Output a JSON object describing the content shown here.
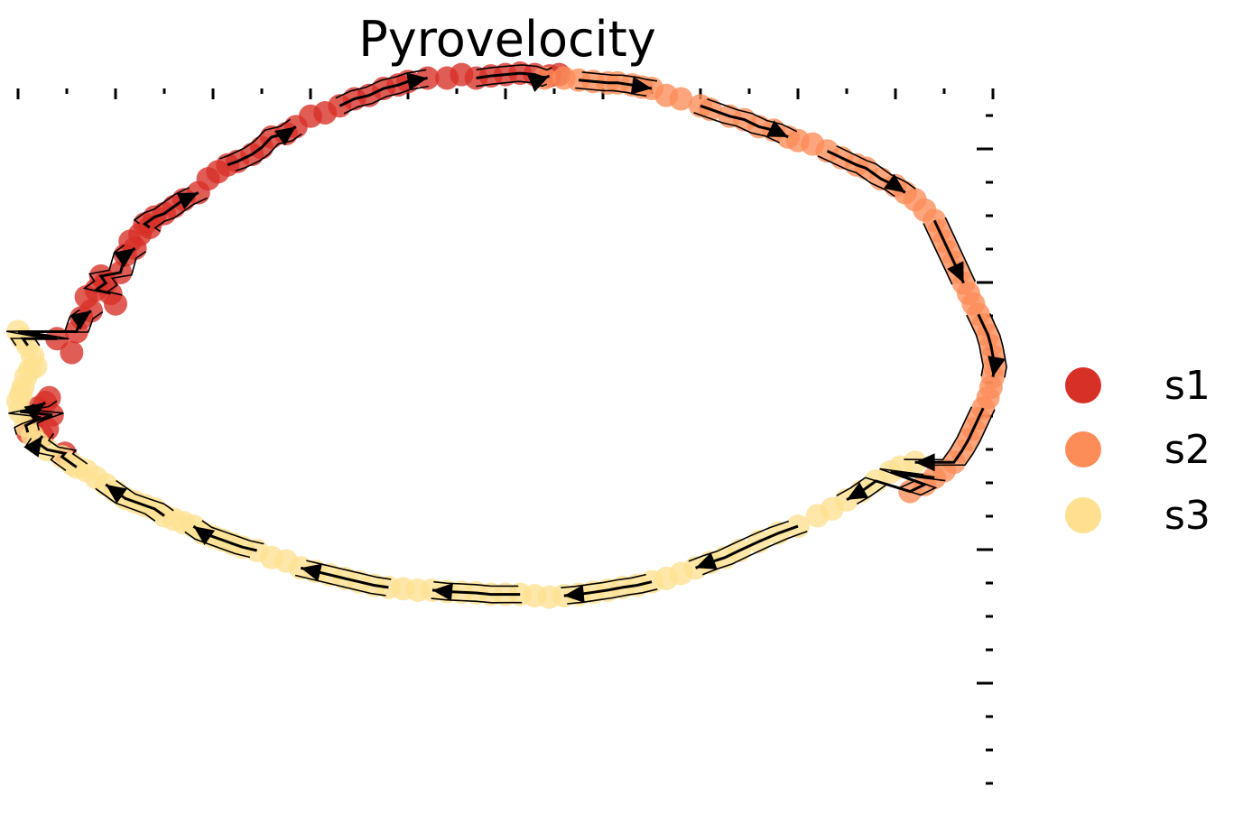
{
  "chart_data": {
    "type": "scatter",
    "title": "Pyrovelocity",
    "xlabel": "",
    "ylabel": "",
    "xlim": [
      0,
      1000
    ],
    "ylim": [
      0,
      1000
    ],
    "x_ticks_top": true,
    "y_ticks_right": true,
    "tick_labels": false,
    "grid": false,
    "legend_position": "right",
    "stream_arrows": true,
    "legend": [
      {
        "name": "s1",
        "color": "#d73027"
      },
      {
        "name": "s2",
        "color": "#fc8d59"
      },
      {
        "name": "s3",
        "color": "#fee090"
      }
    ],
    "series": [
      {
        "name": "s1",
        "color": "#d73027",
        "points": [
          [
            10,
            505
          ],
          [
            15,
            520
          ],
          [
            20,
            540
          ],
          [
            28,
            548
          ],
          [
            32,
            555
          ],
          [
            35,
            530
          ],
          [
            48,
            475
          ],
          [
            30,
            510
          ],
          [
            25,
            500
          ],
          [
            40,
            640
          ],
          [
            55,
            620
          ],
          [
            60,
            650
          ],
          [
            65,
            670
          ],
          [
            70,
            700
          ],
          [
            75,
            680
          ],
          [
            80,
            710
          ],
          [
            85,
            730
          ],
          [
            90,
            720
          ],
          [
            95,
            705
          ],
          [
            100,
            690
          ],
          [
            105,
            735
          ],
          [
            110,
            760
          ],
          [
            115,
            780
          ],
          [
            120,
            770
          ],
          [
            125,
            790
          ],
          [
            130,
            805
          ],
          [
            135,
            800
          ],
          [
            140,
            815
          ],
          [
            150,
            820
          ],
          [
            160,
            830
          ],
          [
            170,
            840
          ],
          [
            185,
            850
          ],
          [
            195,
            870
          ],
          [
            205,
            880
          ],
          [
            215,
            890
          ],
          [
            225,
            895
          ],
          [
            240,
            905
          ],
          [
            250,
            915
          ],
          [
            260,
            930
          ],
          [
            275,
            935
          ],
          [
            285,
            945
          ],
          [
            300,
            960
          ],
          [
            315,
            965
          ],
          [
            330,
            975
          ],
          [
            345,
            985
          ],
          [
            360,
            990
          ],
          [
            375,
            1000
          ],
          [
            390,
            1005
          ],
          [
            400,
            1010
          ],
          [
            420,
            1015
          ],
          [
            440,
            1015
          ],
          [
            455,
            1020
          ],
          [
            470,
            1015
          ],
          [
            485,
            1018
          ],
          [
            500,
            1020
          ],
          [
            515,
            1022
          ],
          [
            530,
            1020
          ],
          [
            545,
            1018
          ],
          [
            555,
            1020
          ]
        ]
      },
      {
        "name": "s2",
        "color": "#fc8d59",
        "points": [
          [
            540,
            1015
          ],
          [
            560,
            1015
          ],
          [
            575,
            1012
          ],
          [
            590,
            1010
          ],
          [
            605,
            1008
          ],
          [
            615,
            1008
          ],
          [
            630,
            1005
          ],
          [
            640,
            1002
          ],
          [
            650,
            1000
          ],
          [
            665,
            990
          ],
          [
            680,
            985
          ],
          [
            700,
            975
          ],
          [
            710,
            970
          ],
          [
            730,
            960
          ],
          [
            745,
            955
          ],
          [
            760,
            945
          ],
          [
            775,
            940
          ],
          [
            790,
            930
          ],
          [
            800,
            925
          ],
          [
            815,
            920
          ],
          [
            830,
            910
          ],
          [
            845,
            900
          ],
          [
            860,
            890
          ],
          [
            870,
            885
          ],
          [
            885,
            870
          ],
          [
            900,
            860
          ],
          [
            910,
            850
          ],
          [
            920,
            840
          ],
          [
            930,
            825
          ],
          [
            940,
            810
          ],
          [
            945,
            795
          ],
          [
            950,
            780
          ],
          [
            955,
            765
          ],
          [
            960,
            750
          ],
          [
            965,
            735
          ],
          [
            970,
            720
          ],
          [
            975,
            705
          ],
          [
            980,
            690
          ],
          [
            985,
            675
          ],
          [
            990,
            660
          ],
          [
            995,
            645
          ],
          [
            998,
            630
          ],
          [
            1000,
            615
          ],
          [
            1002,
            600
          ],
          [
            1000,
            585
          ],
          [
            998,
            570
          ],
          [
            995,
            555
          ],
          [
            990,
            540
          ],
          [
            985,
            525
          ],
          [
            980,
            510
          ],
          [
            975,
            495
          ],
          [
            968,
            478
          ],
          [
            960,
            462
          ],
          [
            950,
            450
          ],
          [
            940,
            440
          ],
          [
            930,
            430
          ],
          [
            915,
            420
          ]
        ]
      },
      {
        "name": "s3",
        "color": "#fee090",
        "points": [
          [
            0,
            650
          ],
          [
            5,
            640
          ],
          [
            10,
            630
          ],
          [
            15,
            615
          ],
          [
            18,
            600
          ],
          [
            12,
            595
          ],
          [
            8,
            585
          ],
          [
            5,
            570
          ],
          [
            3,
            560
          ],
          [
            0,
            550
          ],
          [
            2,
            535
          ],
          [
            8,
            515
          ],
          [
            15,
            500
          ],
          [
            20,
            490
          ],
          [
            30,
            480
          ],
          [
            45,
            470
          ],
          [
            55,
            460
          ],
          [
            60,
            455
          ],
          [
            70,
            450
          ],
          [
            80,
            440
          ],
          [
            90,
            430
          ],
          [
            100,
            420
          ],
          [
            110,
            410
          ],
          [
            120,
            405
          ],
          [
            130,
            400
          ],
          [
            140,
            395
          ],
          [
            150,
            385
          ],
          [
            160,
            380
          ],
          [
            170,
            375
          ],
          [
            180,
            370
          ],
          [
            190,
            360
          ],
          [
            200,
            355
          ],
          [
            210,
            350
          ],
          [
            220,
            345
          ],
          [
            230,
            340
          ],
          [
            245,
            335
          ],
          [
            260,
            325
          ],
          [
            275,
            320
          ],
          [
            290,
            310
          ],
          [
            305,
            305
          ],
          [
            320,
            300
          ],
          [
            335,
            295
          ],
          [
            350,
            290
          ],
          [
            365,
            285
          ],
          [
            380,
            282
          ],
          [
            395,
            280
          ],
          [
            410,
            278
          ],
          [
            425,
            278
          ],
          [
            440,
            276
          ],
          [
            455,
            275
          ],
          [
            470,
            274
          ],
          [
            485,
            272
          ],
          [
            500,
            272
          ],
          [
            515,
            272
          ],
          [
            530,
            270
          ],
          [
            545,
            268
          ],
          [
            560,
            270
          ],
          [
            575,
            272
          ],
          [
            590,
            275
          ],
          [
            605,
            278
          ],
          [
            620,
            282
          ],
          [
            635,
            285
          ],
          [
            650,
            290
          ],
          [
            665,
            295
          ],
          [
            680,
            302
          ],
          [
            695,
            310
          ],
          [
            710,
            318
          ],
          [
            725,
            325
          ],
          [
            740,
            335
          ],
          [
            760,
            348
          ],
          [
            780,
            360
          ],
          [
            800,
            370
          ],
          [
            820,
            385
          ],
          [
            835,
            395
          ],
          [
            850,
            408
          ],
          [
            865,
            420
          ],
          [
            880,
            435
          ],
          [
            895,
            448
          ],
          [
            905,
            455
          ],
          [
            920,
            462
          ]
        ]
      }
    ]
  }
}
